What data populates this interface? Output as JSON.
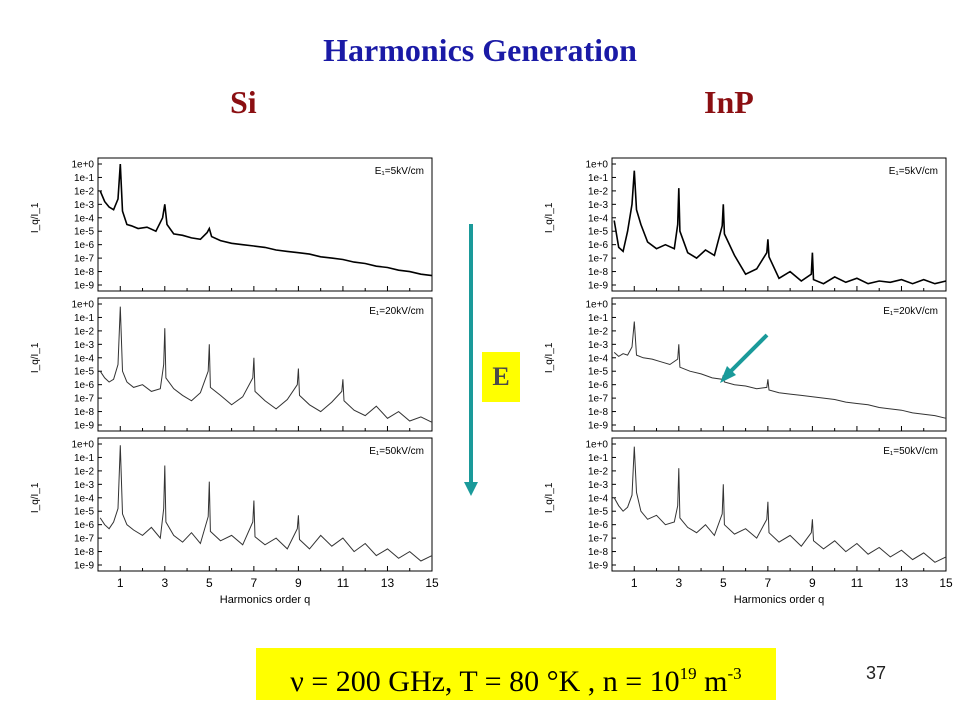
{
  "title": "Harmonics Generation",
  "materials": {
    "left": "Si",
    "right": "InP"
  },
  "field_label": "E",
  "formula": {
    "main": "ν = 200 GHz,  T = 80  °K ,  n = 10",
    "exponent": "19",
    "unit": " m",
    "unit_exponent": "-3"
  },
  "page_number": "37",
  "colors": {
    "title": "#1a1aa6",
    "materials": "#8b0f12",
    "arrow": "#1a9a9a",
    "highlight": "#ffff00"
  },
  "chart_data": [
    {
      "type": "line",
      "material": "Si",
      "xlabel": "Harmonics order q",
      "ylabel": "I_q/I_1",
      "xlim": [
        0,
        15
      ],
      "x_ticks": [
        "1",
        "3",
        "5",
        "7",
        "9",
        "11",
        "13",
        "15"
      ],
      "ylim_log10": [
        -9,
        0
      ],
      "y_ticks": [
        "1e+0",
        "1e-1",
        "1e-2",
        "1e-3",
        "1e-4",
        "1e-5",
        "1e-6",
        "1e-7",
        "1e-8",
        "1e-9"
      ],
      "panels": [
        {
          "field": "E₁=5kV/cm",
          "series": {
            "x": [
              0.1,
              0.3,
              0.5,
              0.7,
              0.9,
              1.0,
              1.1,
              1.3,
              1.5,
              1.8,
              2.2,
              2.6,
              2.9,
              3.0,
              3.1,
              3.4,
              3.8,
              4.2,
              4.6,
              4.9,
              5.0,
              5.1,
              5.5,
              6.0,
              6.5,
              7.0,
              7.5,
              8.0,
              8.5,
              9.0,
              9.5,
              10.0,
              10.5,
              11.0,
              11.5,
              12.0,
              12.5,
              13.0,
              13.5,
              14.0,
              14.5,
              15.0
            ],
            "log10_y": [
              -2.0,
              -2.8,
              -3.2,
              -3.4,
              -2.6,
              0.0,
              -3.5,
              -4.5,
              -4.6,
              -4.8,
              -4.7,
              -5.0,
              -4.0,
              -3.0,
              -4.5,
              -5.2,
              -5.3,
              -5.5,
              -5.6,
              -5.1,
              -4.8,
              -5.4,
              -5.7,
              -5.9,
              -6.0,
              -6.1,
              -6.2,
              -6.4,
              -6.5,
              -6.6,
              -6.7,
              -6.9,
              -7.0,
              -7.1,
              -7.3,
              -7.4,
              -7.6,
              -7.7,
              -7.9,
              -8.0,
              -8.2,
              -8.3
            ]
          }
        },
        {
          "field": "E₁=20kV/cm",
          "series": {
            "x": [
              0.1,
              0.3,
              0.5,
              0.7,
              0.9,
              1.0,
              1.1,
              1.3,
              1.6,
              2.0,
              2.4,
              2.8,
              2.95,
              3.0,
              3.05,
              3.4,
              3.8,
              4.2,
              4.6,
              4.95,
              5.0,
              5.05,
              5.5,
              6.0,
              6.5,
              6.95,
              7.0,
              7.05,
              7.5,
              8.0,
              8.5,
              8.95,
              9.0,
              9.05,
              9.5,
              10.0,
              10.5,
              10.95,
              11.0,
              11.05,
              11.5,
              12.0,
              12.5,
              13.0,
              13.5,
              14.0,
              14.5,
              15.0
            ],
            "log10_y": [
              -5.0,
              -5.5,
              -5.8,
              -5.6,
              -4.5,
              -0.2,
              -5.0,
              -5.8,
              -6.2,
              -6.0,
              -6.5,
              -6.3,
              -4.5,
              -1.8,
              -5.5,
              -6.3,
              -6.8,
              -7.2,
              -6.6,
              -5.0,
              -3.0,
              -6.2,
              -6.8,
              -7.5,
              -6.9,
              -5.5,
              -4.0,
              -6.5,
              -7.2,
              -7.8,
              -7.1,
              -6.0,
              -4.8,
              -6.8,
              -7.5,
              -8.0,
              -7.3,
              -6.5,
              -5.6,
              -7.2,
              -7.9,
              -8.3,
              -7.6,
              -8.5,
              -8.0,
              -8.7,
              -8.4,
              -8.8
            ]
          }
        },
        {
          "field": "E₁=50kV/cm",
          "series": {
            "x": [
              0.1,
              0.3,
              0.5,
              0.7,
              0.9,
              1.0,
              1.1,
              1.3,
              1.6,
              2.0,
              2.4,
              2.8,
              2.95,
              3.0,
              3.05,
              3.4,
              3.8,
              4.2,
              4.6,
              4.95,
              5.0,
              5.05,
              5.5,
              6.0,
              6.5,
              6.95,
              7.0,
              7.05,
              7.5,
              8.0,
              8.5,
              8.95,
              9.0,
              9.05,
              9.5,
              10.0,
              10.5,
              11.0,
              11.5,
              12.0,
              12.5,
              13.0,
              13.5,
              14.0,
              14.5,
              15.0
            ],
            "log10_y": [
              -5.5,
              -6.0,
              -6.3,
              -5.8,
              -4.8,
              -0.1,
              -5.2,
              -6.0,
              -6.4,
              -6.8,
              -6.2,
              -7.0,
              -4.8,
              -1.6,
              -5.8,
              -6.8,
              -7.3,
              -6.6,
              -7.4,
              -5.4,
              -2.8,
              -6.5,
              -7.2,
              -6.8,
              -7.5,
              -5.8,
              -4.2,
              -6.9,
              -7.5,
              -7.0,
              -7.8,
              -6.3,
              -5.3,
              -7.1,
              -7.8,
              -6.8,
              -7.6,
              -7.0,
              -8.0,
              -7.4,
              -8.3,
              -7.8,
              -8.5,
              -8.0,
              -8.7,
              -8.3
            ]
          }
        }
      ]
    },
    {
      "type": "line",
      "material": "InP",
      "xlabel": "Harmonics order q",
      "ylabel": "I_q/I_1",
      "xlim": [
        0,
        15
      ],
      "x_ticks": [
        "1",
        "3",
        "5",
        "7",
        "9",
        "11",
        "13",
        "15"
      ],
      "ylim_log10": [
        -9,
        0
      ],
      "y_ticks": [
        "1e+0",
        "1e-1",
        "1e-2",
        "1e-3",
        "1e-4",
        "1e-5",
        "1e-6",
        "1e-7",
        "1e-8",
        "1e-9"
      ],
      "panels": [
        {
          "field": "E₁=5kV/cm",
          "series": {
            "x": [
              0.1,
              0.3,
              0.5,
              0.7,
              0.9,
              1.0,
              1.1,
              1.3,
              1.6,
              2.0,
              2.4,
              2.8,
              2.95,
              3.0,
              3.05,
              3.4,
              3.8,
              4.2,
              4.6,
              4.95,
              5.0,
              5.05,
              5.5,
              6.0,
              6.5,
              6.95,
              7.0,
              7.05,
              7.5,
              8.0,
              8.5,
              8.95,
              9.0,
              9.05,
              9.5,
              10.0,
              10.5,
              11.0,
              11.5,
              12.0,
              12.5,
              13.0,
              13.5,
              14.0,
              14.5,
              15.0
            ],
            "log10_y": [
              -4.2,
              -6.2,
              -6.5,
              -5.0,
              -3.0,
              -0.5,
              -3.4,
              -4.5,
              -5.8,
              -6.3,
              -6.0,
              -6.3,
              -4.5,
              -1.8,
              -5.0,
              -6.6,
              -7.0,
              -6.4,
              -6.8,
              -4.6,
              -3.0,
              -5.2,
              -6.8,
              -8.2,
              -7.8,
              -6.6,
              -5.6,
              -6.9,
              -8.5,
              -8.0,
              -8.7,
              -8.2,
              -6.6,
              -8.6,
              -8.9,
              -8.4,
              -8.8,
              -8.5,
              -8.9,
              -8.7,
              -8.8,
              -8.6,
              -8.9,
              -8.6,
              -8.9,
              -8.7
            ]
          }
        },
        {
          "field": "E₁=20kV/cm",
          "series": {
            "x": [
              0.1,
              0.3,
              0.5,
              0.7,
              0.9,
              1.0,
              1.1,
              1.4,
              1.8,
              2.2,
              2.6,
              2.95,
              3.0,
              3.05,
              3.5,
              4.0,
              4.5,
              4.95,
              5.0,
              5.05,
              5.5,
              6.0,
              6.5,
              6.95,
              7.0,
              7.05,
              7.5,
              8.0,
              8.5,
              9.0,
              9.5,
              10.0,
              10.5,
              11.0,
              11.5,
              12.0,
              12.5,
              13.0,
              13.5,
              14.0,
              14.5,
              15.0
            ],
            "log10_y": [
              -3.6,
              -3.9,
              -3.7,
              -3.8,
              -3.2,
              -1.3,
              -3.8,
              -4.0,
              -4.1,
              -4.3,
              -4.5,
              -4.1,
              -3.0,
              -4.7,
              -5.0,
              -5.2,
              -5.5,
              -5.6,
              -5.3,
              -5.8,
              -6.0,
              -6.1,
              -6.3,
              -6.2,
              -5.6,
              -6.4,
              -6.6,
              -6.7,
              -6.8,
              -6.9,
              -7.0,
              -7.1,
              -7.3,
              -7.4,
              -7.5,
              -7.7,
              -7.8,
              -7.9,
              -8.1,
              -8.2,
              -8.3,
              -8.5
            ]
          }
        },
        {
          "field": "E₁=50kV/cm",
          "series": {
            "x": [
              0.1,
              0.3,
              0.5,
              0.7,
              0.9,
              1.0,
              1.1,
              1.3,
              1.6,
              2.0,
              2.4,
              2.8,
              2.95,
              3.0,
              3.05,
              3.4,
              3.8,
              4.2,
              4.6,
              4.95,
              5.0,
              5.05,
              5.5,
              6.0,
              6.5,
              6.95,
              7.0,
              7.05,
              7.5,
              8.0,
              8.5,
              8.95,
              9.0,
              9.05,
              9.5,
              10.0,
              10.5,
              11.0,
              11.5,
              12.0,
              12.5,
              13.0,
              13.5,
              14.0,
              14.5,
              15.0
            ],
            "log10_y": [
              -4.0,
              -4.6,
              -5.0,
              -4.7,
              -3.8,
              -0.2,
              -3.6,
              -5.0,
              -5.6,
              -5.3,
              -6.0,
              -5.8,
              -4.6,
              -1.8,
              -5.5,
              -6.2,
              -6.6,
              -6.0,
              -6.8,
              -5.2,
              -3.0,
              -6.0,
              -6.7,
              -6.3,
              -7.0,
              -5.6,
              -4.3,
              -6.6,
              -7.3,
              -6.8,
              -7.6,
              -6.6,
              -5.6,
              -7.2,
              -7.8,
              -7.2,
              -8.0,
              -7.4,
              -8.2,
              -7.7,
              -8.4,
              -7.9,
              -8.6,
              -8.1,
              -8.8,
              -8.4
            ]
          }
        }
      ]
    }
  ]
}
